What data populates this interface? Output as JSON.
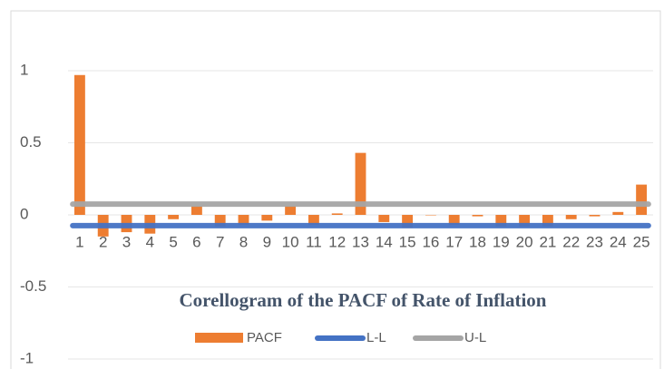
{
  "chart_data": {
    "type": "bar",
    "title": "Corellogram of the PACF of Rate of Inflation",
    "categories": [
      "1",
      "2",
      "3",
      "4",
      "5",
      "6",
      "7",
      "8",
      "9",
      "10",
      "11",
      "12",
      "13",
      "14",
      "15",
      "16",
      "17",
      "18",
      "19",
      "20",
      "21",
      "22",
      "23",
      "24",
      "25"
    ],
    "series": [
      {
        "name": "PACF",
        "type": "bar",
        "color": "#ed7d31",
        "values": [
          0.97,
          -0.15,
          -0.12,
          -0.13,
          -0.03,
          0.06,
          -0.08,
          -0.07,
          -0.04,
          0.06,
          -0.07,
          0.01,
          0.43,
          -0.05,
          -0.09,
          0.0,
          -0.07,
          -0.01,
          -0.08,
          -0.08,
          -0.08,
          -0.03,
          -0.01,
          0.02,
          0.21
        ]
      },
      {
        "name": "L-L",
        "type": "line",
        "color": "#4472c4",
        "values": [
          -0.075,
          -0.075,
          -0.075,
          -0.075,
          -0.075,
          -0.075,
          -0.075,
          -0.075,
          -0.075,
          -0.075,
          -0.075,
          -0.075,
          -0.075,
          -0.075,
          -0.075,
          -0.075,
          -0.075,
          -0.075,
          -0.075,
          -0.075,
          -0.075,
          -0.075,
          -0.075,
          -0.075,
          -0.075
        ]
      },
      {
        "name": "U-L",
        "type": "line",
        "color": "#a5a5a5",
        "values": [
          0.075,
          0.075,
          0.075,
          0.075,
          0.075,
          0.075,
          0.075,
          0.075,
          0.075,
          0.075,
          0.075,
          0.075,
          0.075,
          0.075,
          0.075,
          0.075,
          0.075,
          0.075,
          0.075,
          0.075,
          0.075,
          0.075,
          0.075,
          0.075,
          0.075
        ]
      }
    ],
    "ylim": [
      -1,
      1
    ],
    "yticks": [
      -1,
      -0.5,
      0,
      0.5,
      1
    ],
    "grid": true,
    "legend": "bottom"
  }
}
